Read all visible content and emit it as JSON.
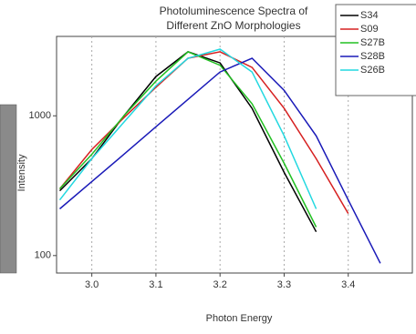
{
  "chart_data": {
    "type": "line",
    "title": "Photoluminescence Spectra of",
    "subtitle": "Different ZnO Morphologies",
    "x_label": "Photon Energy",
    "y_label": "Intensity",
    "x": [
      2.95,
      3.0,
      3.05,
      3.1,
      3.15,
      3.2,
      3.25,
      3.3,
      3.35,
      3.4,
      3.45
    ],
    "series": [
      {
        "name": "S34",
        "color": "#000000",
        "values": [
          291,
          493,
          1000,
          1910,
          2870,
          2390,
          1130,
          393,
          148,
          null,
          null
        ]
      },
      {
        "name": "S09",
        "color": "#d62020",
        "values": [
          300,
          573,
          970,
          1600,
          2580,
          2870,
          2220,
          1130,
          493,
          200,
          null
        ]
      },
      {
        "name": "S27B",
        "color": "#22c022",
        "values": [
          300,
          530,
          1000,
          1770,
          2870,
          2300,
          1220,
          457,
          160,
          null,
          null
        ]
      },
      {
        "name": "S28B",
        "color": "#1a1ab8",
        "values": [
          216,
          338,
          530,
          835,
          1310,
          2060,
          2580,
          1520,
          718,
          250,
          88
        ]
      },
      {
        "name": "S26B",
        "color": "#22d8e0",
        "values": [
          250,
          493,
          900,
          1640,
          2580,
          3000,
          2060,
          718,
          216,
          null,
          null
        ]
      }
    ],
    "xlim": [
      2.945,
      3.5
    ],
    "ylim": [
      75,
      3700
    ],
    "xticks": [
      {
        "value": 3,
        "label": "3.0"
      },
      3.1,
      3.2,
      3.3,
      3.4
    ],
    "yticks": [
      100,
      1000
    ],
    "log_y": true,
    "grid": true,
    "legend": "top-right"
  }
}
